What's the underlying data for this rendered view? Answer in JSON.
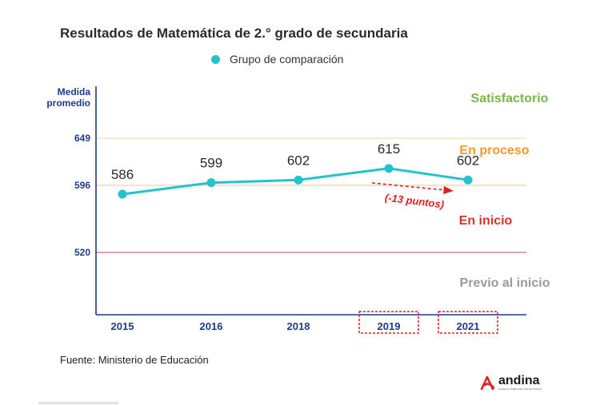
{
  "chart_data": {
    "type": "line",
    "title": "Resultados de Matemática de 2.° grado de secundaria",
    "ylabel": [
      "Medida",
      "promedio"
    ],
    "categories": [
      "2015",
      "2016",
      "2018",
      "2019",
      "2021"
    ],
    "highlighted_categories": [
      "2019",
      "2021"
    ],
    "series": [
      {
        "name": "Grupo de comparación",
        "color": "#21c3cc",
        "values": [
          586,
          599,
          602,
          615,
          602
        ]
      }
    ],
    "yticks": [
      649,
      596,
      520
    ],
    "reference_lines": [
      {
        "value": 649,
        "color": "#e9ecc1"
      },
      {
        "value": 596,
        "color": "#f7d7b0"
      },
      {
        "value": 520,
        "color": "#d08a86"
      }
    ],
    "zones": [
      {
        "label": "Satisfactorio",
        "color": "#7ab648"
      },
      {
        "label": "En proceso",
        "color": "#f39a27"
      },
      {
        "label": "En inicio",
        "color": "#d8322d"
      },
      {
        "label": "Previo al inicio",
        "color": "#9a9a9a"
      }
    ],
    "annotation": {
      "text": "(-13 puntos)",
      "color": "#e02020"
    },
    "axis_color": "#1f3a8a"
  },
  "source": "Fuente: Ministerio de Educación",
  "logo": {
    "brand": "andina",
    "tagline": "AGENCIA PERUANA DE NOTICIAS",
    "color": "#e02020"
  }
}
